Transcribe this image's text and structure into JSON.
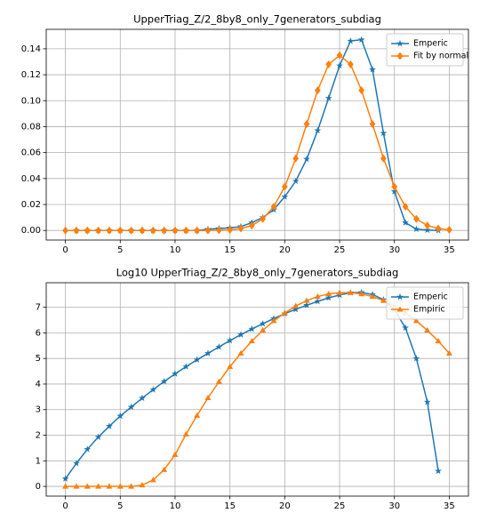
{
  "chart_data": [
    {
      "type": "line",
      "title": "UpperTriag_Z/2_8by8_only_7generators_subdiag",
      "xlim": [
        -1.75,
        36.75
      ],
      "xticks": [
        0,
        5,
        10,
        15,
        20,
        25,
        30,
        35
      ],
      "ylim": [
        -0.0074,
        0.155
      ],
      "yticks": [
        {
          "value": 0,
          "label": "0.00"
        },
        {
          "value": 0.02,
          "label": "0.02"
        },
        {
          "value": 0.04,
          "label": "0.04"
        },
        {
          "value": 0.06,
          "label": "0.06"
        },
        {
          "value": 0.08,
          "label": "0.08"
        },
        {
          "value": 0.1,
          "label": "0.10"
        },
        {
          "value": 0.12,
          "label": "0.12"
        },
        {
          "value": 0.14,
          "label": "0.14"
        }
      ],
      "grid": true,
      "legend": "upper right",
      "series": [
        {
          "name": "Emperic",
          "color": "#1f77b4",
          "marker": "star",
          "x": [
            1,
            2,
            3,
            4,
            5,
            6,
            7,
            8,
            9,
            10,
            11,
            12,
            13,
            14,
            15,
            16,
            17,
            18,
            19,
            20,
            21,
            22,
            23,
            24,
            25,
            26,
            27,
            28,
            29,
            30,
            31,
            32,
            33,
            34
          ],
          "values": [
            0,
            0,
            0,
            0,
            0,
            0,
            0,
            0,
            0,
            0,
            0,
            0,
            0.001,
            0.0015,
            0.002,
            0.003,
            0.006,
            0.01,
            0.016,
            0.026,
            0.038,
            0.055,
            0.077,
            0.102,
            0.127,
            0.146,
            0.147,
            0.124,
            0.075,
            0.03,
            0.006,
            0.001,
            0.0003,
            0
          ]
        },
        {
          "name": "Fit by normal",
          "color": "#ff7f0e",
          "marker": "diamond",
          "x": [
            0,
            1,
            2,
            3,
            4,
            5,
            6,
            7,
            8,
            9,
            10,
            11,
            12,
            13,
            14,
            15,
            16,
            17,
            18,
            19,
            20,
            21,
            22,
            23,
            24,
            25,
            26,
            27,
            28,
            29,
            30,
            31,
            32,
            33,
            34,
            35
          ],
          "values": [
            0,
            0,
            0,
            0,
            0,
            0,
            0,
            0,
            0,
            0,
            0,
            0,
            0,
            0,
            0.0002,
            0.0005,
            0.0015,
            0.0038,
            0.0089,
            0.0183,
            0.0337,
            0.0555,
            0.082,
            0.108,
            0.128,
            0.135,
            0.128,
            0.108,
            0.082,
            0.0555,
            0.0337,
            0.0183,
            0.0089,
            0.0038,
            0.0015,
            0.0005
          ]
        }
      ]
    },
    {
      "type": "line",
      "title": "Log10 UpperTriag_Z/2_8by8_only_7generators_subdiag",
      "xlim": [
        -1.75,
        36.75
      ],
      "xticks": [
        0,
        5,
        10,
        15,
        20,
        25,
        30,
        35
      ],
      "ylim": [
        -0.38,
        7.96
      ],
      "yticks": [
        0,
        1,
        2,
        3,
        4,
        5,
        6,
        7
      ],
      "grid": true,
      "legend": "upper right",
      "series": [
        {
          "name": "Emperic",
          "color": "#1f77b4",
          "marker": "star",
          "x": [
            0,
            1,
            2,
            3,
            4,
            5,
            6,
            7,
            8,
            9,
            10,
            11,
            12,
            13,
            14,
            15,
            16,
            17,
            18,
            19,
            20,
            21,
            22,
            23,
            24,
            25,
            26,
            27,
            28,
            29,
            30,
            31,
            32,
            33,
            34
          ],
          "values": [
            0.3,
            0.9,
            1.45,
            1.93,
            2.35,
            2.75,
            3.1,
            3.45,
            3.78,
            4.1,
            4.4,
            4.68,
            4.95,
            5.2,
            5.45,
            5.7,
            5.93,
            6.15,
            6.36,
            6.56,
            6.75,
            6.92,
            7.08,
            7.23,
            7.37,
            7.48,
            7.57,
            7.58,
            7.5,
            7.3,
            6.9,
            6.2,
            5.0,
            3.3,
            0.6
          ]
        },
        {
          "name": "Empiric",
          "color": "#ff7f0e",
          "marker": "triangle",
          "x": [
            0,
            1,
            2,
            3,
            4,
            5,
            6,
            7,
            8,
            9,
            10,
            11,
            12,
            13,
            14,
            15,
            16,
            17,
            18,
            19,
            20,
            21,
            22,
            23,
            24,
            25,
            26,
            27,
            28,
            29,
            30,
            31,
            32,
            33,
            34,
            35
          ],
          "values": [
            0,
            0,
            0,
            0,
            0,
            0,
            0,
            0.05,
            0.25,
            0.65,
            1.24,
            2.04,
            2.77,
            3.46,
            4.09,
            4.68,
            5.2,
            5.68,
            6.1,
            6.47,
            6.78,
            7.05,
            7.26,
            7.42,
            7.52,
            7.57,
            7.57,
            7.52,
            7.42,
            7.26,
            7.05,
            6.78,
            6.47,
            6.1,
            5.68,
            5.2
          ]
        }
      ]
    }
  ]
}
